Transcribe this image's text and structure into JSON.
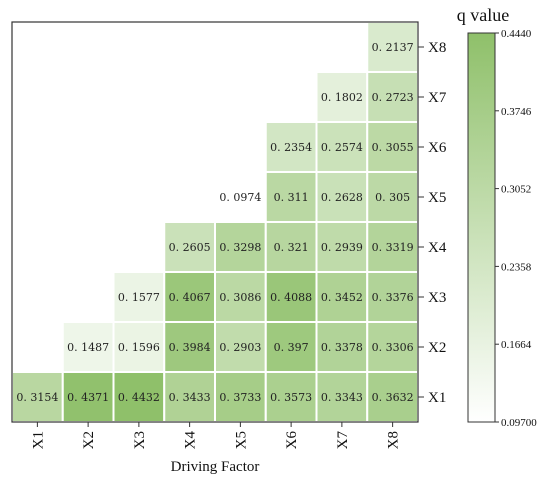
{
  "chart_data": {
    "type": "heatmap",
    "xlabel": "Driving Factor",
    "x_categories": [
      "X1",
      "X2",
      "X3",
      "X4",
      "X5",
      "X6",
      "X7",
      "X8"
    ],
    "y_categories": [
      "X1",
      "X2",
      "X3",
      "X4",
      "X5",
      "X6",
      "X7",
      "X8"
    ],
    "y_axis_side": "right",
    "colorbar": {
      "title": "q value",
      "min": 0.097,
      "max": 0.444,
      "ticks": [
        "0.4440",
        "0.3746",
        "0.3052",
        "0.2358",
        "0.1664",
        "0.09700"
      ],
      "color_low": "#ffffff",
      "color_high": "#8fc06a"
    },
    "cells": [
      {
        "row": "X1",
        "values": [
          "0.3154",
          "0.4371",
          "0.4432",
          "0.3433",
          "0.3733",
          "0.3573",
          "0.3343",
          "0.3632"
        ]
      },
      {
        "row": "X2",
        "values": [
          null,
          "0.1487",
          "0.1596",
          "0.3984",
          "0.2903",
          "0.397",
          "0.3378",
          "0.3306"
        ]
      },
      {
        "row": "X3",
        "values": [
          null,
          null,
          "0.1577",
          "0.4067",
          "0.3086",
          "0.4088",
          "0.3452",
          "0.3376"
        ]
      },
      {
        "row": "X4",
        "values": [
          null,
          null,
          null,
          "0.2605",
          "0.3298",
          "0.321",
          "0.2939",
          "0.3319"
        ]
      },
      {
        "row": "X5",
        "values": [
          null,
          null,
          null,
          null,
          "0.0974",
          "0.311",
          "0.2628",
          "0.305"
        ]
      },
      {
        "row": "X6",
        "values": [
          null,
          null,
          null,
          null,
          null,
          "0.2354",
          "0.2574",
          "0.3055"
        ]
      },
      {
        "row": "X7",
        "values": [
          null,
          null,
          null,
          null,
          null,
          null,
          "0.1802",
          "0.2723"
        ]
      },
      {
        "row": "X8",
        "values": [
          null,
          null,
          null,
          null,
          null,
          null,
          null,
          "0.2137"
        ]
      }
    ]
  }
}
